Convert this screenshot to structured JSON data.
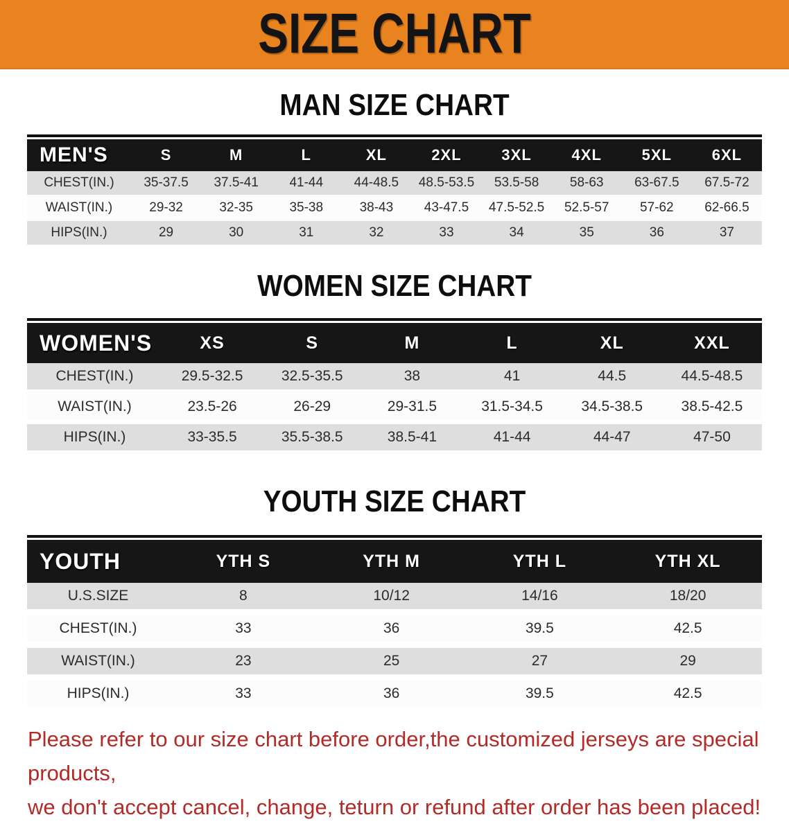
{
  "banner": {
    "title": "SIZE CHART",
    "bg_color": "#e8831f",
    "text_color": "#141414"
  },
  "sections": [
    {
      "heading": "MAN SIZE CHART",
      "table": {
        "header_label": "MEN'S",
        "columns": [
          "S",
          "M",
          "L",
          "XL",
          "2XL",
          "3XL",
          "4XL",
          "5XL",
          "6XL"
        ],
        "rows": [
          {
            "label": "CHEST(IN.)",
            "values": [
              "35-37.5",
              "37.5-41",
              "41-44",
              "44-48.5",
              "48.5-53.5",
              "53.5-58",
              "58-63",
              "63-67.5",
              "67.5-72"
            ]
          },
          {
            "label": "WAIST(IN.)",
            "values": [
              "29-32",
              "32-35",
              "35-38",
              "38-43",
              "43-47.5",
              "47.5-52.5",
              "52.5-57",
              "57-62",
              "62-66.5"
            ]
          },
          {
            "label": "HIPS(IN.)",
            "values": [
              "29",
              "30",
              "31",
              "32",
              "33",
              "34",
              "35",
              "36",
              "37"
            ]
          }
        ]
      }
    },
    {
      "heading": "WOMEN SIZE CHART",
      "table": {
        "header_label": "WOMEN'S",
        "columns": [
          "XS",
          "S",
          "M",
          "L",
          "XL",
          "XXL"
        ],
        "rows": [
          {
            "label": "CHEST(IN.)",
            "values": [
              "29.5-32.5",
              "32.5-35.5",
              "38",
              "41",
              "44.5",
              "44.5-48.5"
            ]
          },
          {
            "label": "WAIST(IN.)",
            "values": [
              "23.5-26",
              "26-29",
              "29-31.5",
              "31.5-34.5",
              "34.5-38.5",
              "38.5-42.5"
            ]
          },
          {
            "label": "HIPS(IN.)",
            "values": [
              "33-35.5",
              "35.5-38.5",
              "38.5-41",
              "41-44",
              "44-47",
              "47-50"
            ]
          }
        ]
      }
    },
    {
      "heading": "YOUTH SIZE CHART",
      "table": {
        "header_label": "YOUTH",
        "columns": [
          "YTH S",
          "YTH M",
          "YTH L",
          "YTH XL"
        ],
        "rows": [
          {
            "label": "U.S.SIZE",
            "values": [
              "8",
              "10/12",
              "14/16",
              "18/20"
            ]
          },
          {
            "label": "CHEST(IN.)",
            "values": [
              "33",
              "36",
              "39.5",
              "42.5"
            ]
          },
          {
            "label": "WAIST(IN.)",
            "values": [
              "23",
              "25",
              "27",
              "29"
            ]
          },
          {
            "label": "HIPS(IN.)",
            "values": [
              "33",
              "36",
              "39.5",
              "42.5"
            ]
          }
        ]
      }
    }
  ],
  "disclaimer": {
    "line1": "Please refer to our size chart before order,the customized jerseys are special products,",
    "line2": "we don't accept cancel, change, teturn or refund after order has been placed!",
    "color": "#b42a26"
  }
}
